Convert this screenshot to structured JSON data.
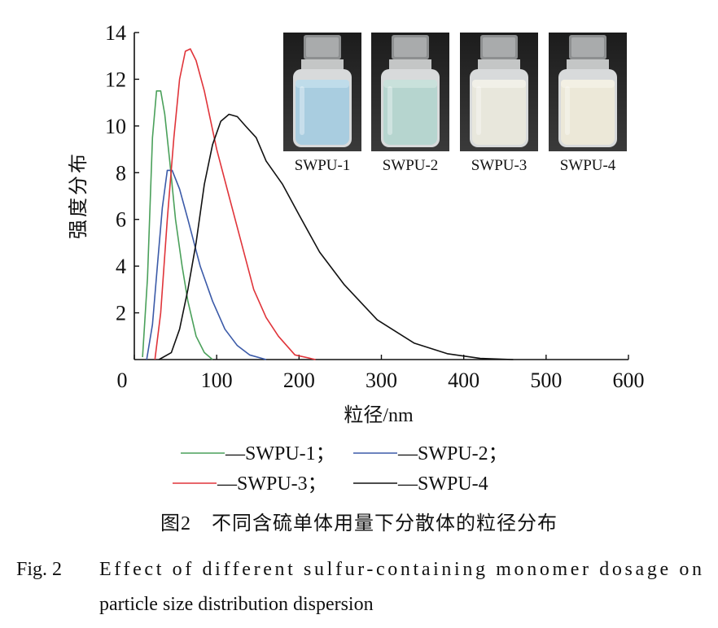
{
  "chart_data": {
    "type": "line",
    "xlabel": "粒径/nm",
    "ylabel": "强度分布",
    "xlim": [
      0,
      600
    ],
    "ylim": [
      0,
      14
    ],
    "x_ticks": [
      "0",
      "100",
      "200",
      "300",
      "400",
      "500",
      "600"
    ],
    "y_ticks": [
      "2",
      "4",
      "6",
      "8",
      "10",
      "12",
      "14"
    ],
    "grid": false,
    "series": [
      {
        "name": "SWPU-1",
        "color": "#4aa05a",
        "points": [
          [
            10,
            0.1
          ],
          [
            16,
            3.5
          ],
          [
            22,
            9.5
          ],
          [
            27,
            11.5
          ],
          [
            32,
            11.5
          ],
          [
            37,
            10.5
          ],
          [
            43,
            8.5
          ],
          [
            50,
            6
          ],
          [
            58,
            4
          ],
          [
            65,
            2.5
          ],
          [
            75,
            1
          ],
          [
            85,
            0.3
          ],
          [
            95,
            0
          ]
        ]
      },
      {
        "name": "SWPU-2",
        "color": "#3b5aa8",
        "points": [
          [
            15,
            0
          ],
          [
            22,
            1.5
          ],
          [
            28,
            4
          ],
          [
            34,
            6.5
          ],
          [
            40,
            8.1
          ],
          [
            46,
            8.1
          ],
          [
            55,
            7.3
          ],
          [
            65,
            6
          ],
          [
            80,
            4
          ],
          [
            95,
            2.5
          ],
          [
            110,
            1.3
          ],
          [
            125,
            0.6
          ],
          [
            140,
            0.2
          ],
          [
            160,
            0
          ]
        ]
      },
      {
        "name": "SWPU-3",
        "color": "#e0343a",
        "points": [
          [
            25,
            0
          ],
          [
            32,
            2
          ],
          [
            40,
            6
          ],
          [
            48,
            9.5
          ],
          [
            55,
            12
          ],
          [
            62,
            13.2
          ],
          [
            68,
            13.3
          ],
          [
            75,
            12.8
          ],
          [
            85,
            11.5
          ],
          [
            100,
            9
          ],
          [
            115,
            7
          ],
          [
            130,
            5
          ],
          [
            145,
            3
          ],
          [
            160,
            1.8
          ],
          [
            175,
            1
          ],
          [
            195,
            0.2
          ],
          [
            220,
            0
          ]
        ]
      },
      {
        "name": "SWPU-4",
        "color": "#111111",
        "points": [
          [
            30,
            0
          ],
          [
            45,
            0.3
          ],
          [
            55,
            1.3
          ],
          [
            65,
            3
          ],
          [
            75,
            5
          ],
          [
            85,
            7.5
          ],
          [
            95,
            9.2
          ],
          [
            105,
            10.2
          ],
          [
            115,
            10.5
          ],
          [
            125,
            10.4
          ],
          [
            135,
            10
          ],
          [
            148,
            9.5
          ],
          [
            160,
            8.5
          ],
          [
            180,
            7.5
          ],
          [
            200,
            6.2
          ],
          [
            225,
            4.6
          ],
          [
            255,
            3.2
          ],
          [
            295,
            1.7
          ],
          [
            340,
            0.7
          ],
          [
            380,
            0.25
          ],
          [
            420,
            0.05
          ],
          [
            460,
            0
          ]
        ]
      }
    ]
  },
  "inset_photos": [
    {
      "label": "SWPU-1",
      "liquid": "#a9cde0",
      "liquid_top": "#bfdcea"
    },
    {
      "label": "SWPU-2",
      "liquid": "#b6d5cf",
      "liquid_top": "#c9e1db"
    },
    {
      "label": "SWPU-3",
      "liquid": "#e8e7dc",
      "liquid_top": "#f1f0e8"
    },
    {
      "label": "SWPU-4",
      "liquid": "#ece8d8",
      "liquid_top": "#f3f0e4"
    }
  ],
  "legend": {
    "row1": [
      "—SWPU-1；",
      "—SWPU-2；"
    ],
    "row2": [
      "—SWPU-3；",
      "—SWPU-4"
    ]
  },
  "caption": {
    "cn": "图2　不同含硫单体用量下分散体的粒径分布",
    "en_prefix": "Fig. 2",
    "en_line1": "Effect of different sulfur-containing monomer dosage on",
    "en_line2": "particle size distribution dispersion"
  }
}
